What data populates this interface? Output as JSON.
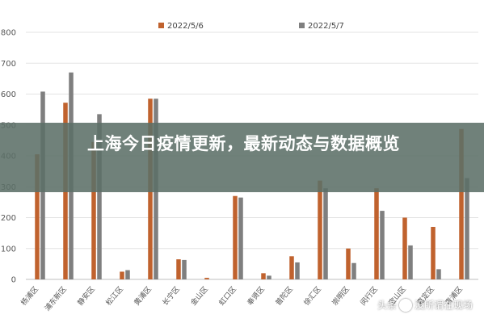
{
  "chart_data": {
    "type": "bar",
    "title": "",
    "xlabel": "",
    "ylabel": "",
    "ylim": [
      0,
      800
    ],
    "yticks": [
      0,
      100,
      200,
      300,
      400,
      500,
      600,
      700,
      800
    ],
    "grid": true,
    "legend_position": "top-center",
    "categories": [
      "杨浦区",
      "浦东新区",
      "静安区",
      "松江区",
      "黄浦区",
      "长宁区",
      "金山区",
      "虹口区",
      "奉贤区",
      "普陀区",
      "徐汇区",
      "崇明区",
      "闵行区",
      "宝山区",
      "嘉定区",
      "青浦区"
    ],
    "series": [
      {
        "name": "2022/5/6",
        "color": "#c0622e",
        "values": [
          405,
          572,
          445,
          25,
          585,
          65,
          5,
          270,
          20,
          75,
          320,
          100,
          295,
          200,
          170,
          487
        ]
      },
      {
        "name": "2022/5/7",
        "color": "#7f7f7f",
        "values": [
          608,
          670,
          535,
          30,
          585,
          63,
          0,
          265,
          12,
          55,
          295,
          53,
          222,
          110,
          33,
          328
        ]
      }
    ]
  },
  "banner": {
    "title": "上海今日疫情更新，最新动态与数据概览"
  },
  "watermark": {
    "left_text": "头条",
    "right_text": "没所谓在现场",
    "icon": "toutiao-logo-icon"
  }
}
